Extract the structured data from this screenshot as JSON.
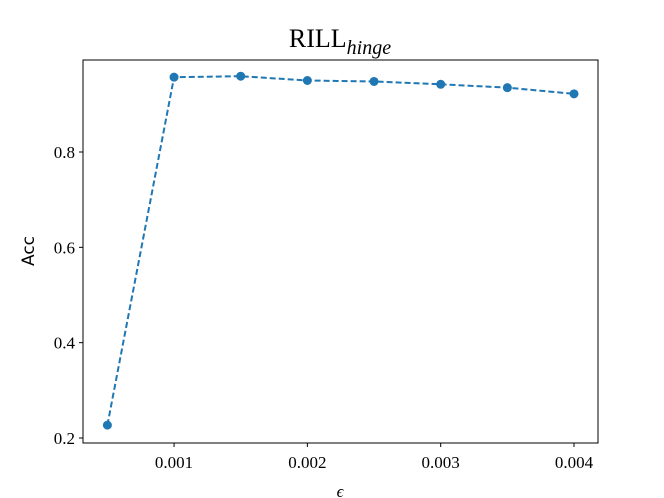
{
  "chart_data": {
    "type": "line",
    "title": "RILL",
    "title_subscript": "hinge",
    "x_label": "ϵ",
    "y_label": "Acc",
    "x": [
      0.0005,
      0.001,
      0.0015,
      0.002,
      0.0025,
      0.003,
      0.0035,
      0.004
    ],
    "series": [
      {
        "color": "#1f77b4",
        "values": [
          0.227,
          0.957,
          0.959,
          0.95,
          0.948,
          0.942,
          0.935,
          0.922
        ]
      }
    ],
    "xlim": [
      0.000317,
      0.00418
    ],
    "xticks": [
      0.001,
      0.002,
      0.003,
      0.004
    ],
    "ylim": [
      0.1895,
      0.993
    ],
    "yticks": [
      0.2,
      0.4,
      0.6,
      0.8
    ]
  }
}
